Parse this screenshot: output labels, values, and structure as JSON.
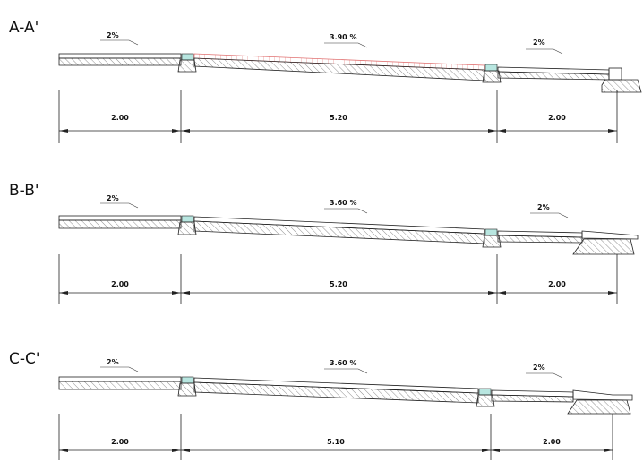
{
  "sections": [
    {
      "title": "A-A'",
      "slopes": [
        "2%",
        "3.90 %",
        "2%"
      ],
      "dimensions": [
        "2.00",
        "5.20",
        "2.00"
      ],
      "colors": {
        "hatch_fill": "#e8a0a0"
      }
    },
    {
      "title": "B-B'",
      "slopes": [
        "2%",
        "3.60 %",
        "2%"
      ],
      "dimensions": [
        "2.00",
        "5.20",
        "2.00"
      ]
    },
    {
      "title": "C-C'",
      "slopes": [
        "2%",
        "3.60 %",
        "2%"
      ],
      "dimensions": [
        "2.00",
        "5.10",
        "2.00"
      ]
    }
  ],
  "colors": {
    "line": "#222222",
    "joint": "#b8e6e0",
    "red_grid": "#e07070"
  }
}
